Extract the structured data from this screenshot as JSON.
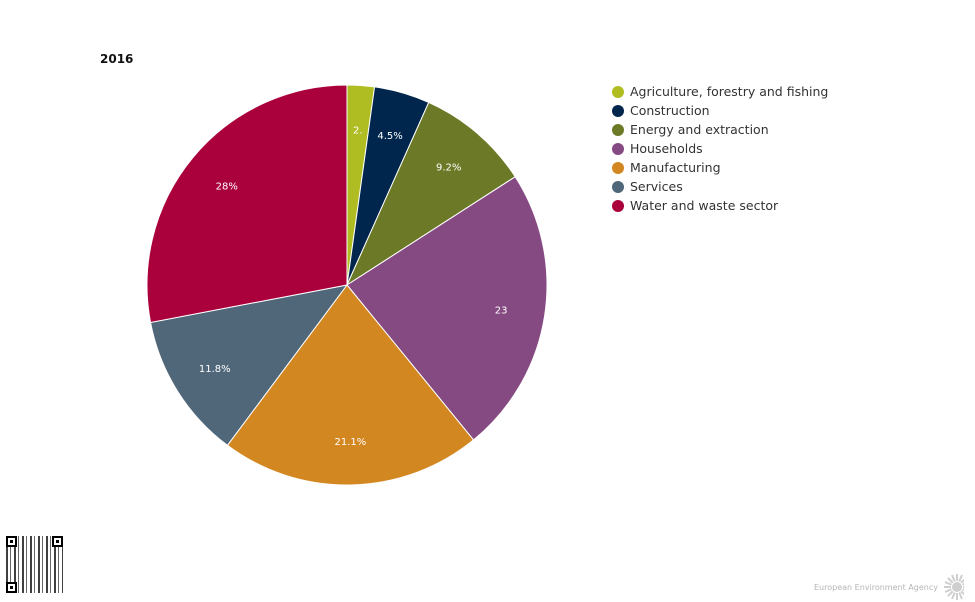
{
  "chart_data": {
    "type": "pie",
    "title": "2016",
    "slices": [
      {
        "label": "Agriculture, forestry and fishing",
        "value": 2.2,
        "value_label": "2.",
        "color": "#afbd22"
      },
      {
        "label": "Construction",
        "value": 4.5,
        "value_label": "4.5%",
        "color": "#00264d"
      },
      {
        "label": "Energy and extraction",
        "value": 9.2,
        "value_label": "9.2%",
        "color": "#6c7a28"
      },
      {
        "label": "Households",
        "value": 23.2,
        "value_label": "23",
        "color": "#864a83"
      },
      {
        "label": "Manufacturing",
        "value": 21.1,
        "value_label": "21.1%",
        "color": "#d38721"
      },
      {
        "label": "Services",
        "value": 11.8,
        "value_label": "11.8%",
        "color": "#50677a"
      },
      {
        "label": "Water and waste sector",
        "value": 28,
        "value_label": "28%",
        "color": "#aa003c"
      }
    ],
    "legend": "right",
    "start_angle": "12 o'clock",
    "direction": "clockwise"
  },
  "footer": {
    "agency": "European Environment Agency",
    "logo_color": "#cfcfcf"
  }
}
